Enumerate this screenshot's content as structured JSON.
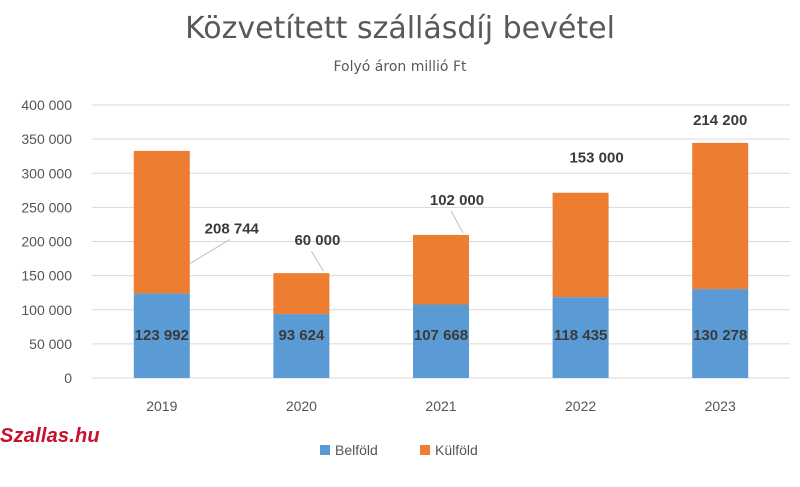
{
  "watermark": "Szallas.hu",
  "chart_data": {
    "type": "bar",
    "stacked": true,
    "title": "Közvetített szállásdíj bevétel",
    "subtitle": "Folyó áron millió Ft",
    "categories": [
      "2019",
      "2020",
      "2021",
      "2022",
      "2023"
    ],
    "series": [
      {
        "name": "Belföld",
        "values": [
          123992,
          93624,
          107668,
          118435,
          130278
        ],
        "labels": [
          "123 992",
          "93 624",
          "107 668",
          "118 435",
          "130 278"
        ]
      },
      {
        "name": "Külföld",
        "values": [
          208744,
          60000,
          102000,
          153000,
          214200
        ],
        "labels": [
          "208 744",
          "60 000",
          "102 000",
          "153 000",
          "214 200"
        ]
      }
    ],
    "colors": {
      "Belföld": "#5b9bd5",
      "Külföld": "#ed7d31"
    },
    "ylim": [
      0,
      400000
    ],
    "yticks": [
      0,
      50000,
      100000,
      150000,
      200000,
      250000,
      300000,
      350000,
      400000
    ],
    "ytick_labels": [
      "0",
      "50 000",
      "100 000",
      "150 000",
      "200 000",
      "250 000",
      "300 000",
      "350 000",
      "400 000"
    ],
    "grid": true,
    "legend": "bottom"
  }
}
